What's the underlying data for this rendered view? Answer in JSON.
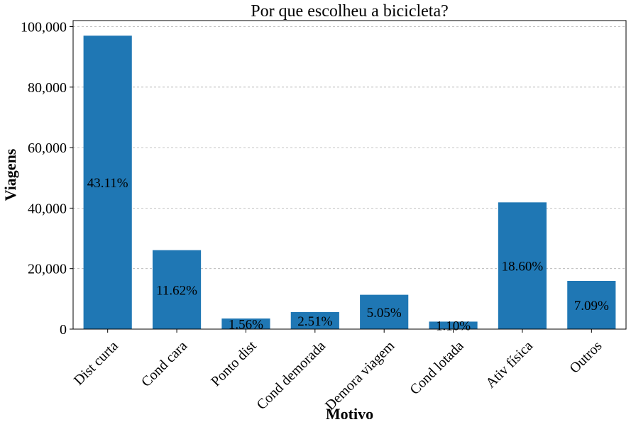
{
  "chart_data": {
    "type": "bar",
    "title": "Por que escolheu a bicicleta?",
    "xlabel": "Motivo",
    "ylabel": "Viagens",
    "categories": [
      "Dist curta",
      "Cond cara",
      "Ponto dist",
      "Cond demorada",
      "Demora viagem",
      "Cond lotada",
      "Ativ física",
      "Outros"
    ],
    "values": [
      97000,
      26100,
      3500,
      5650,
      11350,
      2480,
      41900,
      15950
    ],
    "data_labels": [
      "43.11%",
      "11.62%",
      "1.56%",
      "2.51%",
      "5.05%",
      "1.10%",
      "18.60%",
      "7.09%"
    ],
    "ylim": [
      0,
      102000
    ],
    "yticks": [
      0,
      20000,
      40000,
      60000,
      80000,
      100000
    ],
    "ytick_labels": [
      "0",
      "20,000",
      "40,000",
      "60,000",
      "80,000",
      "100,000"
    ],
    "grid": true,
    "bar_color": "#1f77b4"
  }
}
